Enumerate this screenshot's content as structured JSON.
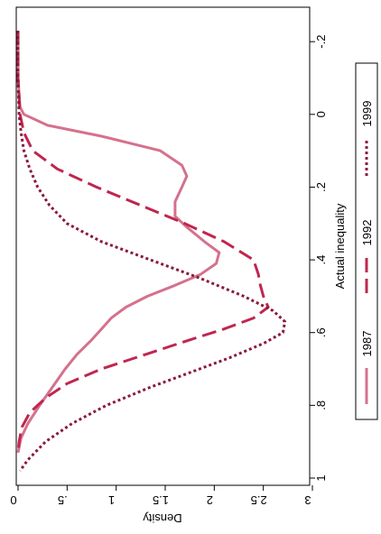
{
  "chart_data": {
    "type": "line",
    "orientation": "rotated-90",
    "xlabel": "Actual inequality",
    "ylabel": "Density",
    "xlim": [
      -0.25,
      1.0
    ],
    "ylim": [
      0,
      3.0
    ],
    "x_ticks": [
      -0.2,
      0,
      0.2,
      0.4,
      0.6,
      0.8,
      1
    ],
    "x_tick_labels": [
      "-.2",
      "0",
      ".2",
      ".4",
      ".6",
      ".8",
      "1"
    ],
    "y_ticks": [
      0,
      0.5,
      1,
      1.5,
      2,
      2.5,
      3
    ],
    "y_tick_labels": [
      "0",
      ".5",
      "1",
      "1.5",
      "2",
      "2.5",
      "3"
    ],
    "legend_position": "right",
    "grid": false,
    "series": [
      {
        "name": "1987",
        "color": "#d5718d",
        "style": "solid",
        "x": [
          -0.23,
          -0.1,
          -0.02,
          0.0,
          0.03,
          0.06,
          0.1,
          0.14,
          0.17,
          0.2,
          0.24,
          0.28,
          0.31,
          0.35,
          0.38,
          0.41,
          0.44,
          0.47,
          0.5,
          0.53,
          0.56,
          0.59,
          0.62,
          0.66,
          0.7,
          0.75,
          0.8,
          0.85,
          0.89,
          0.93
        ],
        "y": [
          0.0,
          0.0,
          0.02,
          0.06,
          0.3,
          0.85,
          1.45,
          1.67,
          1.72,
          1.67,
          1.6,
          1.6,
          1.72,
          1.9,
          2.05,
          2.02,
          1.86,
          1.6,
          1.32,
          1.1,
          0.95,
          0.85,
          0.75,
          0.6,
          0.48,
          0.35,
          0.22,
          0.1,
          0.03,
          0.0
        ]
      },
      {
        "name": "1992",
        "color": "#c0264f",
        "style": "dashed",
        "x": [
          -0.23,
          -0.1,
          0.0,
          0.05,
          0.1,
          0.15,
          0.2,
          0.25,
          0.3,
          0.35,
          0.4,
          0.44,
          0.47,
          0.5,
          0.53,
          0.56,
          0.59,
          0.62,
          0.66,
          0.7,
          0.74,
          0.78,
          0.82,
          0.86,
          0.9,
          0.93
        ],
        "y": [
          0.0,
          0.0,
          0.02,
          0.06,
          0.15,
          0.4,
          0.8,
          1.25,
          1.7,
          2.1,
          2.4,
          2.45,
          2.47,
          2.5,
          2.55,
          2.4,
          2.1,
          1.75,
          1.3,
          0.85,
          0.5,
          0.28,
          0.12,
          0.04,
          0.01,
          0.0
        ]
      },
      {
        "name": "1999",
        "color": "#8a1a3d",
        "style": "dotted",
        "x": [
          -0.23,
          -0.1,
          0.0,
          0.05,
          0.1,
          0.15,
          0.2,
          0.25,
          0.3,
          0.35,
          0.4,
          0.45,
          0.5,
          0.54,
          0.57,
          0.6,
          0.63,
          0.67,
          0.71,
          0.75,
          0.8,
          0.85,
          0.9,
          0.95,
          0.98
        ],
        "y": [
          0.0,
          0.0,
          0.01,
          0.03,
          0.06,
          0.12,
          0.2,
          0.32,
          0.5,
          0.85,
          1.35,
          1.85,
          2.3,
          2.6,
          2.72,
          2.7,
          2.5,
          2.15,
          1.75,
          1.35,
          0.9,
          0.55,
          0.28,
          0.1,
          0.02
        ]
      }
    ]
  }
}
